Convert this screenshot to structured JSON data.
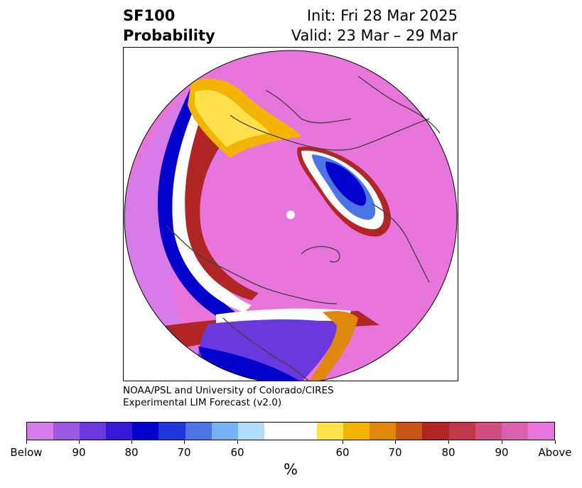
{
  "title": {
    "variable": "SF100",
    "subtitle": "Probability",
    "init": "Init: Fri 28 Mar 2025",
    "valid": "Valid: 23 Mar – 29 Mar"
  },
  "credit": {
    "line1": "NOAA/PSL and University of Colorado/CIRES",
    "line2": "Experimental LIM Forecast (v2.0)"
  },
  "map": {
    "projection": "north-polar-stereographic",
    "overlays": [
      "coastlines",
      "country-borders",
      "state-borders"
    ],
    "dominant_category": "Above"
  },
  "colorbar": {
    "unit": "%",
    "colors": [
      "#d77bea",
      "#9b58e0",
      "#6a38dc",
      "#3519d6",
      "#0000cc",
      "#2136d8",
      "#4b74e4",
      "#74b2f3",
      "#b1dcfb",
      "#ffffff",
      "#ffe14b",
      "#f4b400",
      "#e0870d",
      "#c75416",
      "#b12525",
      "#c1384b",
      "#cf4d7f",
      "#dc61ae",
      "#e875dc"
    ],
    "tick_labels": [
      "Below",
      "90",
      "80",
      "70",
      "60",
      "60",
      "70",
      "80",
      "90",
      "Above"
    ]
  }
}
